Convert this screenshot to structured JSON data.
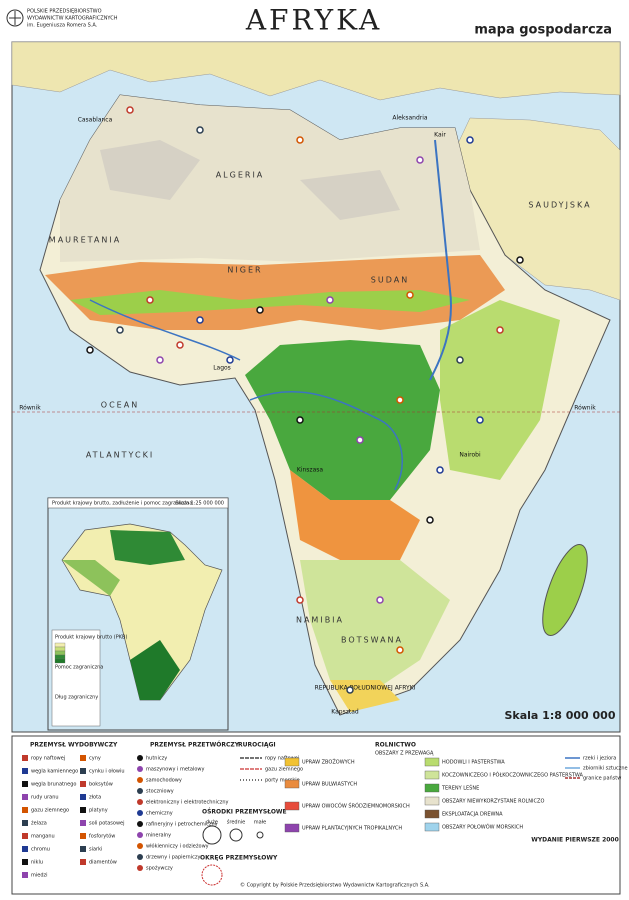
{
  "header": {
    "publisher": [
      "POLSKIE PRZEDSIĘBIORSTWO",
      "WYDAWNICTW KARTOGRAFICZNYCH",
      "im. Eugeniusza Romera S.A."
    ],
    "title": "AFRYKA",
    "subtitle": "mapa gospodarcza"
  },
  "map": {
    "labels": [
      "ALGERIA",
      "MAURETANIA",
      "NIGER",
      "SUDAN",
      "OCEAN",
      "ATLANTYCKI",
      "NAMIBIA",
      "BOTSWANA",
      "REPUBLIKA POŁUDNIOWEJ AFRYKI",
      "Kapsztad",
      "Lagos",
      "Kinszasa",
      "Nairobi",
      "Kair",
      "Casablanca",
      "Aleksandria",
      "Równik",
      "Równik",
      "SAUDYJSKA"
    ],
    "scale": "Skala 1:8 000 000"
  },
  "inset": {
    "title": "Produkt krajowy brutto, zadłużenie i pomoc zagraniczna",
    "scale": "Skala 1:25 000 000",
    "legend": [
      "Produkt krajowy brutto (PKB)",
      "Pomoc zagraniczna",
      "Dług zagraniczny"
    ]
  },
  "legend": {
    "mining": {
      "title": "PRZEMYSŁ WYDOBYWCZY",
      "items": [
        "ropy naftowej",
        "węgla kamiennego",
        "węgla brunatnego",
        "rudy uranu",
        "gazu ziemnego",
        "żelaza",
        "manganu",
        "chromu",
        "niklu",
        "miedzi",
        "cyny",
        "cynku i ołowiu",
        "boksytów",
        "złota",
        "platyny",
        "soli potasowej",
        "fosforytów",
        "siarki",
        "diamentów"
      ]
    },
    "processing": {
      "title": "PRZEMYSŁ PRZETWÓRCZY",
      "items": [
        "hutniczy",
        "maszynowy i metalowy",
        "samochodowy",
        "stoczniowy",
        "elektroniczny i elektrotechniczny",
        "chemiczny",
        "rafineryjny i petrochemiczny",
        "mineralny",
        "włókienniczy i odzieżowy",
        "drzewny i papierniczy",
        "spożywczy"
      ]
    },
    "pipelines": {
      "title": "RUROCIĄGI",
      "items": [
        "ropy naftowej",
        "gazu ziemnego",
        "porty morskie"
      ]
    },
    "centers": {
      "title": "OŚRODKI PRZEMYSŁOWE",
      "sizes": [
        "duże",
        "średnie",
        "małe"
      ]
    },
    "district": {
      "title": "OKRĘG PRZEMYSŁOWY"
    },
    "agriculture": {
      "title": "ROLNICTWO",
      "subtitle": "OBSZARY Z PRZEWAGĄ",
      "items": [
        "UPRAW ZBOŻOWYCH",
        "UPRAW BULWIASTYCH",
        "UPRAW OWOCÓW ŚRÓDZIEMNOMORSKICH",
        "UPRAW PLANTACYJNYCH TROPIKALNYCH",
        "HODOWLI I PASTERSTWA",
        "KOCZOWNICZEGO I PÓŁKOCZOWNICZEGO PASTERSTWA",
        "TERENY LEŚNE",
        "OBSZARY NIEWYKORZYSTANE ROLNICZO",
        "EKSPLOATACJA DREWNA",
        "OBSZARY POŁOWÓW MORSKICH"
      ]
    },
    "other": {
      "items": [
        "rzeki i jeziora",
        "zbiorniki sztuczne",
        "granice państw"
      ]
    },
    "edition": "WYDANIE PIERWSZE 2000",
    "copyright": "© Copyright by Polskie Przedsiębiorstwo Wydawnictw Kartograficznych S.A."
  }
}
